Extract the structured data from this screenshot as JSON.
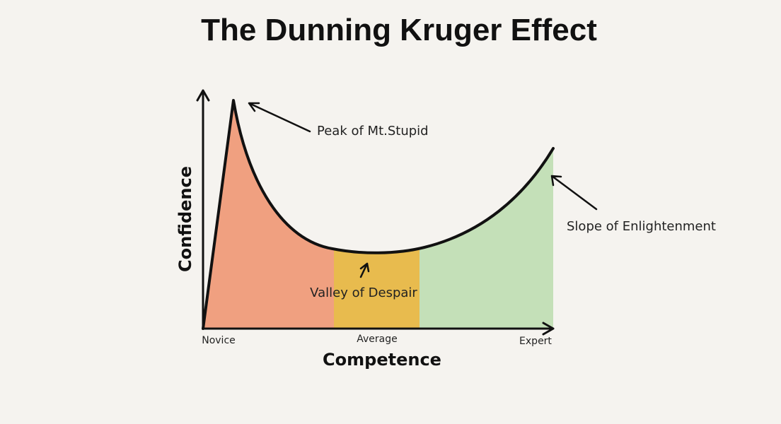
{
  "title": "The Dunning Kruger Effect",
  "axes": {
    "y_label": "Confidence",
    "x_label": "Competence"
  },
  "x_labels": [
    "Novice",
    "Average",
    "Expert"
  ],
  "annotations": [
    "Peak of Mt.Stupid",
    "Valley of Despair",
    "Slope of Enlightenment"
  ]
}
